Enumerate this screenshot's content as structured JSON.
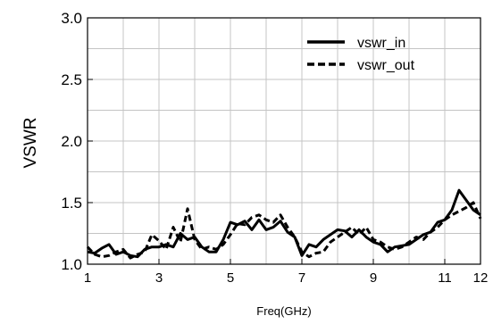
{
  "chart_data": {
    "type": "line",
    "title": "",
    "xlabel": "Freq(GHz)",
    "ylabel": "VSWR",
    "xlim": [
      1,
      12
    ],
    "ylim": [
      1.0,
      3.0
    ],
    "x_ticks": [
      1,
      3,
      5,
      7,
      9,
      11,
      12
    ],
    "x_tick_labels": [
      "1",
      "3",
      "5",
      "7",
      "9",
      "11",
      "12"
    ],
    "y_ticks": [
      1.0,
      1.5,
      2.0,
      2.5,
      3.0
    ],
    "y_tick_labels": [
      "1.0",
      "1.5",
      "2.0",
      "2.5",
      "3.0"
    ],
    "x_grid": [
      1,
      2,
      3,
      4,
      5,
      6,
      7,
      8,
      9,
      10,
      11,
      12
    ],
    "y_grid": [
      1.0,
      1.25,
      1.5,
      1.75,
      2.0,
      2.25,
      2.5,
      2.75,
      3.0
    ],
    "grid": true,
    "legend_position": "top-right",
    "series": [
      {
        "name": "vswr_in",
        "style": "solid",
        "color": "#000000",
        "x": [
          1.0,
          1.2,
          1.4,
          1.6,
          1.8,
          2.0,
          2.2,
          2.4,
          2.6,
          2.8,
          3.0,
          3.2,
          3.4,
          3.6,
          3.8,
          4.0,
          4.2,
          4.4,
          4.6,
          4.8,
          5.0,
          5.2,
          5.4,
          5.6,
          5.8,
          6.0,
          6.2,
          6.4,
          6.6,
          6.8,
          7.0,
          7.2,
          7.4,
          7.6,
          7.8,
          8.0,
          8.2,
          8.4,
          8.6,
          8.8,
          9.0,
          9.2,
          9.4,
          9.6,
          9.8,
          10.0,
          10.2,
          10.4,
          10.6,
          10.8,
          11.0,
          11.2,
          11.4,
          11.6,
          11.8,
          12.0
        ],
        "values": [
          1.1,
          1.09,
          1.13,
          1.16,
          1.08,
          1.1,
          1.07,
          1.06,
          1.12,
          1.14,
          1.14,
          1.16,
          1.14,
          1.25,
          1.2,
          1.22,
          1.14,
          1.1,
          1.1,
          1.2,
          1.34,
          1.32,
          1.35,
          1.28,
          1.36,
          1.28,
          1.3,
          1.35,
          1.26,
          1.22,
          1.07,
          1.16,
          1.14,
          1.2,
          1.24,
          1.28,
          1.27,
          1.22,
          1.28,
          1.22,
          1.18,
          1.16,
          1.1,
          1.14,
          1.15,
          1.16,
          1.2,
          1.24,
          1.26,
          1.34,
          1.36,
          1.44,
          1.6,
          1.52,
          1.44,
          1.4
        ]
      },
      {
        "name": "vswr_out",
        "style": "dashed",
        "color": "#000000",
        "x": [
          1.0,
          1.2,
          1.4,
          1.6,
          1.8,
          2.0,
          2.2,
          2.4,
          2.6,
          2.8,
          3.0,
          3.2,
          3.4,
          3.6,
          3.8,
          4.0,
          4.2,
          4.4,
          4.6,
          4.8,
          5.0,
          5.2,
          5.4,
          5.6,
          5.8,
          6.0,
          6.2,
          6.4,
          6.6,
          6.8,
          7.0,
          7.2,
          7.4,
          7.6,
          7.8,
          8.0,
          8.2,
          8.4,
          8.6,
          8.8,
          9.0,
          9.2,
          9.4,
          9.6,
          9.8,
          10.0,
          10.2,
          10.4,
          10.6,
          10.8,
          11.0,
          11.2,
          11.4,
          11.6,
          11.8,
          12.0
        ],
        "values": [
          1.14,
          1.08,
          1.06,
          1.07,
          1.1,
          1.12,
          1.05,
          1.08,
          1.1,
          1.24,
          1.19,
          1.12,
          1.3,
          1.18,
          1.45,
          1.2,
          1.12,
          1.14,
          1.12,
          1.16,
          1.24,
          1.33,
          1.32,
          1.38,
          1.4,
          1.36,
          1.34,
          1.4,
          1.3,
          1.22,
          1.1,
          1.06,
          1.09,
          1.1,
          1.18,
          1.22,
          1.26,
          1.3,
          1.24,
          1.3,
          1.2,
          1.18,
          1.14,
          1.12,
          1.14,
          1.18,
          1.22,
          1.2,
          1.26,
          1.3,
          1.36,
          1.4,
          1.43,
          1.46,
          1.5,
          1.37
        ]
      }
    ]
  }
}
